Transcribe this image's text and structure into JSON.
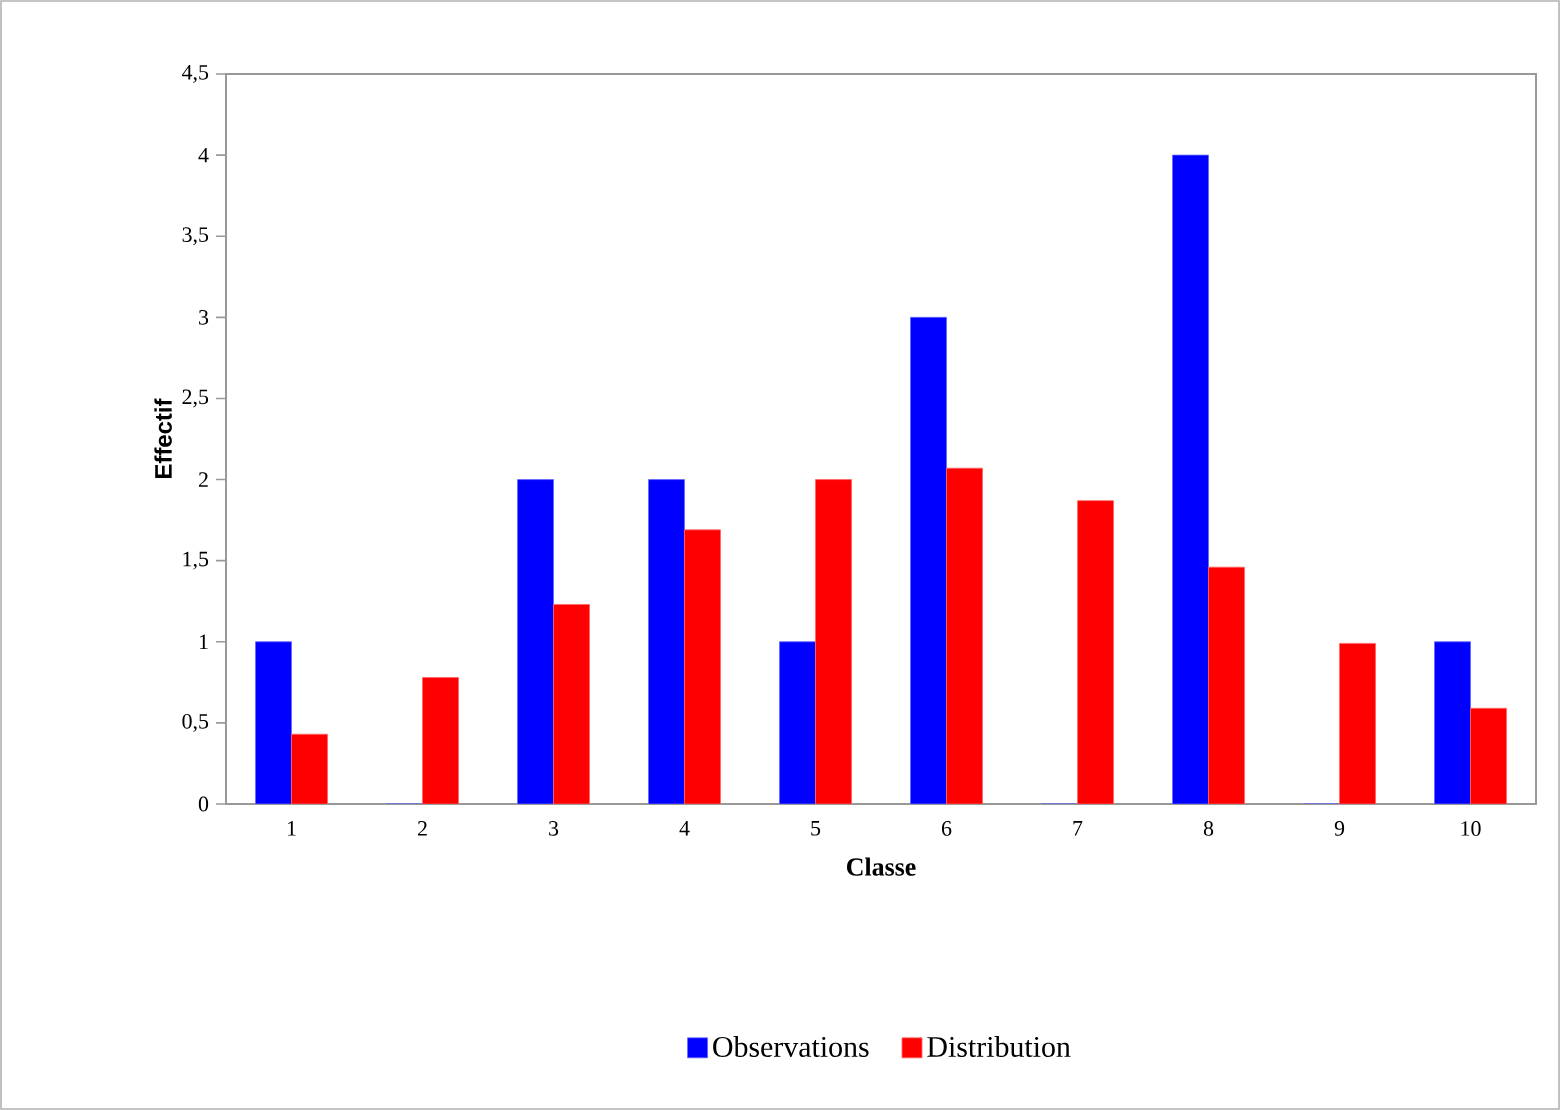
{
  "chart_data": {
    "type": "bar",
    "xlabel": "Classe",
    "ylabel": "Effectif",
    "categories": [
      "1",
      "2",
      "3",
      "4",
      "5",
      "6",
      "7",
      "8",
      "9",
      "10"
    ],
    "series": [
      {
        "name": "Observations",
        "color": "#0000ff",
        "values": [
          1,
          0,
          2,
          2,
          1,
          3,
          0,
          4,
          0,
          1
        ]
      },
      {
        "name": "Distribution",
        "color": "#ff0000",
        "values": [
          0.43,
          0.78,
          1.23,
          1.69,
          2.0,
          2.07,
          1.87,
          1.46,
          0.99,
          0.59
        ]
      }
    ],
    "ylim": [
      0,
      4.5
    ],
    "yticks": [
      0,
      {
        "value": 0.5,
        "label": "0,5"
      },
      1,
      {
        "value": 1.5,
        "label": "1,5"
      },
      2,
      {
        "value": 2.5,
        "label": "2,5"
      },
      3,
      {
        "value": 3.5,
        "label": "3,5"
      },
      4,
      {
        "value": 4.5,
        "label": "4,5"
      }
    ],
    "grid": false,
    "legend": "bottom"
  }
}
